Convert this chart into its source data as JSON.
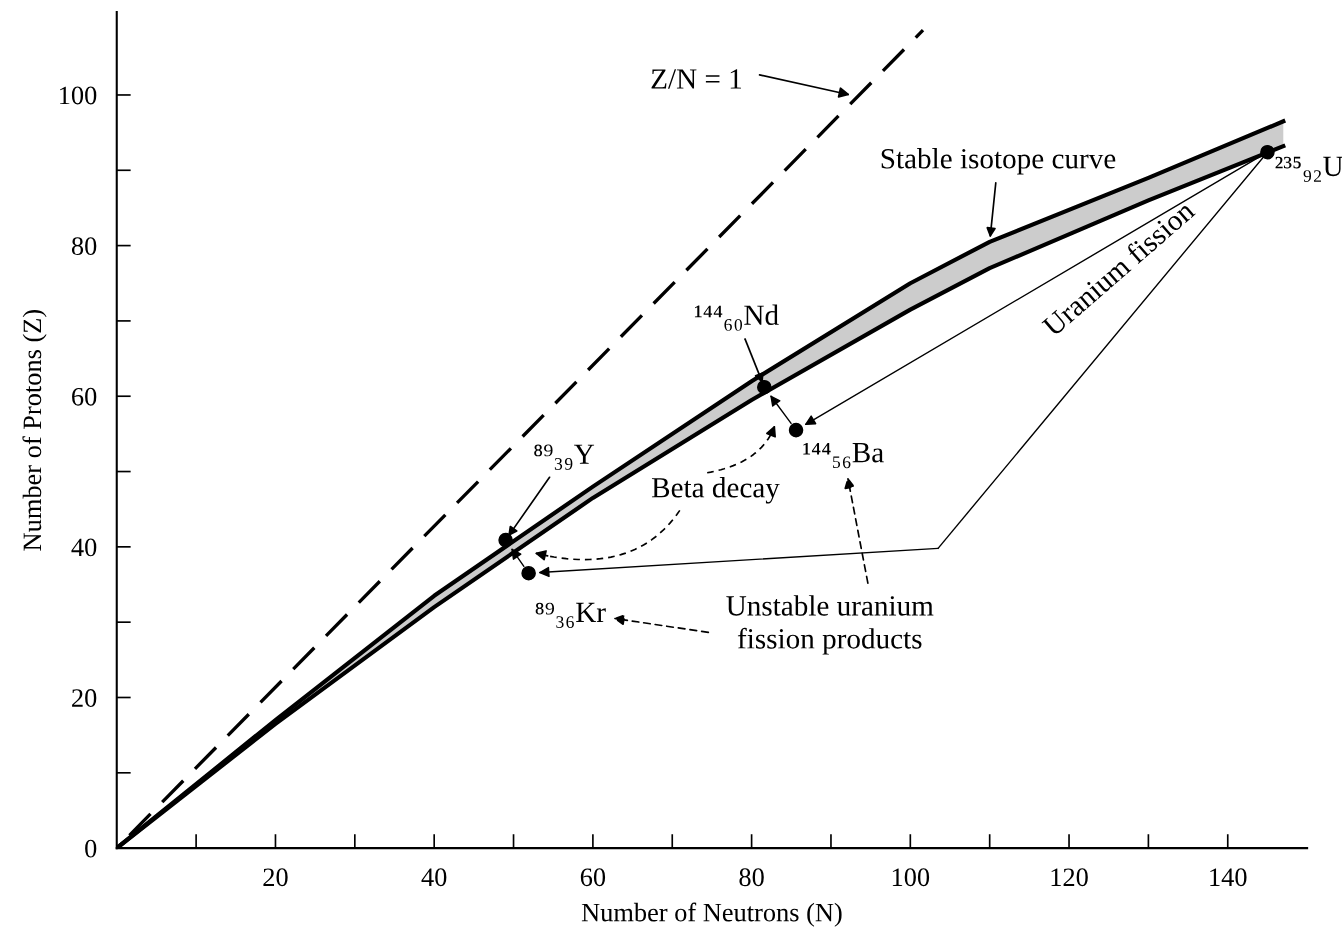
{
  "chart_data": {
    "type": "line",
    "xlabel": "Number of Neutrons (N)",
    "ylabel": "Number of Protons (Z)",
    "xlim": [
      0,
      150
    ],
    "ylim": [
      0,
      111
    ],
    "xticks": [
      {
        "value": 10,
        "label": null
      },
      20,
      {
        "value": 30,
        "label": null
      },
      40,
      {
        "value": 50,
        "label": null
      },
      60,
      {
        "value": 70,
        "label": null
      },
      80,
      {
        "value": 90,
        "label": null
      },
      100,
      {
        "value": 110,
        "label": null
      },
      120,
      {
        "value": 130,
        "label": null
      },
      140
    ],
    "yticks": [
      0,
      {
        "value": 10,
        "label": null
      },
      20,
      {
        "value": 30,
        "label": null
      },
      40,
      {
        "value": 50,
        "label": null
      },
      60,
      {
        "value": 70,
        "label": null
      },
      80,
      {
        "value": 90,
        "label": null
      },
      100
    ],
    "grid": false,
    "series": [
      {
        "color": "#000000",
        "x": [
          0,
          20,
          40,
          60,
          80,
          100,
          110,
          130,
          147
        ],
        "values": [
          0,
          17,
          33.5,
          48,
          62,
          75,
          80.5,
          89,
          96.5
        ],
        "lower": [
          0,
          16.5,
          32,
          46.5,
          59.5,
          71.5,
          77,
          86,
          93.2
        ],
        "upper": [
          0,
          17,
          33.5,
          48,
          62,
          75,
          80.5,
          89,
          96.5
        ]
      },
      {
        "color": "#000000",
        "x": [
          0,
          20,
          40,
          60,
          80,
          100,
          110,
          130,
          147
        ],
        "values": [
          0,
          16.5,
          32,
          46.5,
          59.5,
          71.5,
          77,
          86,
          93.2
        ]
      },
      {
        "color": "#000000",
        "line_style": "dashed",
        "x": [
          1.6,
          101.6
        ],
        "values": [
          1.7,
          108.6
        ]
      },
      {
        "type": "scatter",
        "color": "#000000",
        "marker": "circle",
        "x": [
          145,
          81.6,
          85.6,
          49,
          51.9
        ],
        "values": [
          92.4,
          61.2,
          55.5,
          40.9,
          36.5
        ]
      }
    ],
    "annotations": [
      "Z/N = 1",
      {
        "text": "Stable isotope curve",
        "x": 110,
        "y": 80.5
      },
      {
        "text": "²³⁵₉₂U",
        "x": 145,
        "y": 92.4
      },
      {
        "text": "¹⁴⁴₆₀Nd",
        "x": 81.6,
        "y": 61.2
      },
      {
        "text": "¹⁴⁴₅₆Ba",
        "x": 85.6,
        "y": 55.5
      },
      {
        "text": "⁸⁹₃₉Y",
        "x": 49,
        "y": 40.9
      },
      {
        "text": "⁸⁹₃₆Kr",
        "x": 51.9,
        "y": 36.5
      },
      "Beta decay",
      "Unstable uranium\nfission products",
      "Uranium fission"
    ]
  }
}
